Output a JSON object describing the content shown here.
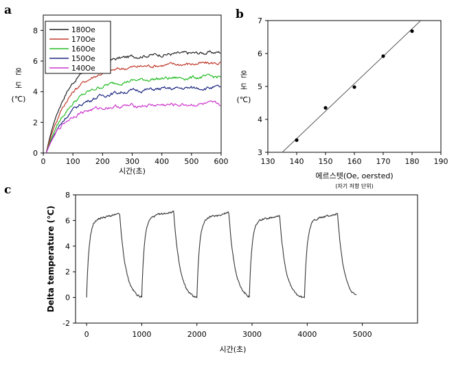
{
  "chart_data": [
    {
      "panel": "a",
      "type": "line",
      "xlabel": "시간(초)",
      "ylabel": [
        "온",
        "도",
        "(℃)"
      ],
      "xlim": [
        0,
        600
      ],
      "ylim": [
        0,
        9
      ],
      "xticks": [
        0,
        100,
        200,
        300,
        400,
        500,
        600
      ],
      "yticks": [
        0,
        2,
        4,
        6,
        8
      ],
      "legend_position": "top-left",
      "grid": false,
      "series": [
        {
          "name": "180Oe",
          "color": "#222222",
          "plateau": 6.6,
          "tau": 70
        },
        {
          "name": "170Oe",
          "color": "#c0392b",
          "plateau": 5.9,
          "tau": 75
        },
        {
          "name": "160Oe",
          "color": "#22bb22",
          "plateau": 5.0,
          "tau": 80
        },
        {
          "name": "150Oe",
          "color": "#1a237e",
          "plateau": 4.3,
          "tau": 80
        },
        {
          "name": "140Oe",
          "color": "#cc33cc",
          "plateau": 3.2,
          "tau": 60
        }
      ]
    },
    {
      "panel": "b",
      "type": "scatter",
      "xlabel": "에르스텟(Oe, oersted)",
      "xlabel_note": "(자기 저항 단위)",
      "ylabel": [
        "온",
        "도",
        "(℃)"
      ],
      "xlim": [
        130,
        190
      ],
      "ylim": [
        3,
        7
      ],
      "xticks": [
        130,
        140,
        150,
        160,
        170,
        180,
        190
      ],
      "yticks": [
        3,
        4,
        5,
        6,
        7
      ],
      "grid": false,
      "points": [
        {
          "x": 140,
          "y": 3.37
        },
        {
          "x": 150,
          "y": 4.35
        },
        {
          "x": 160,
          "y": 4.98
        },
        {
          "x": 170,
          "y": 5.92
        },
        {
          "x": 180,
          "y": 6.68
        }
      ],
      "fit_line": {
        "x": [
          135,
          183
        ],
        "y": [
          3.0,
          7.0
        ]
      }
    },
    {
      "panel": "c",
      "type": "line",
      "xlabel": "시간(초)",
      "ylabel": "Delta temperature (℃)",
      "xlim": [
        -200,
        6000
      ],
      "ylim": [
        -2,
        8
      ],
      "xticks": [
        0,
        1000,
        2000,
        3000,
        4000,
        5000
      ],
      "yticks": [
        -2,
        0,
        2,
        4,
        6,
        8
      ],
      "grid": false,
      "cycles": [
        {
          "on": 0,
          "off": 600,
          "peak": 6.5
        },
        {
          "on": 1000,
          "off": 1580,
          "peak": 6.7
        },
        {
          "on": 2000,
          "off": 2580,
          "peak": 6.6
        },
        {
          "on": 2950,
          "off": 3500,
          "peak": 6.4
        },
        {
          "on": 3950,
          "off": 4550,
          "peak": 6.5
        }
      ],
      "end_time": 4900
    }
  ]
}
